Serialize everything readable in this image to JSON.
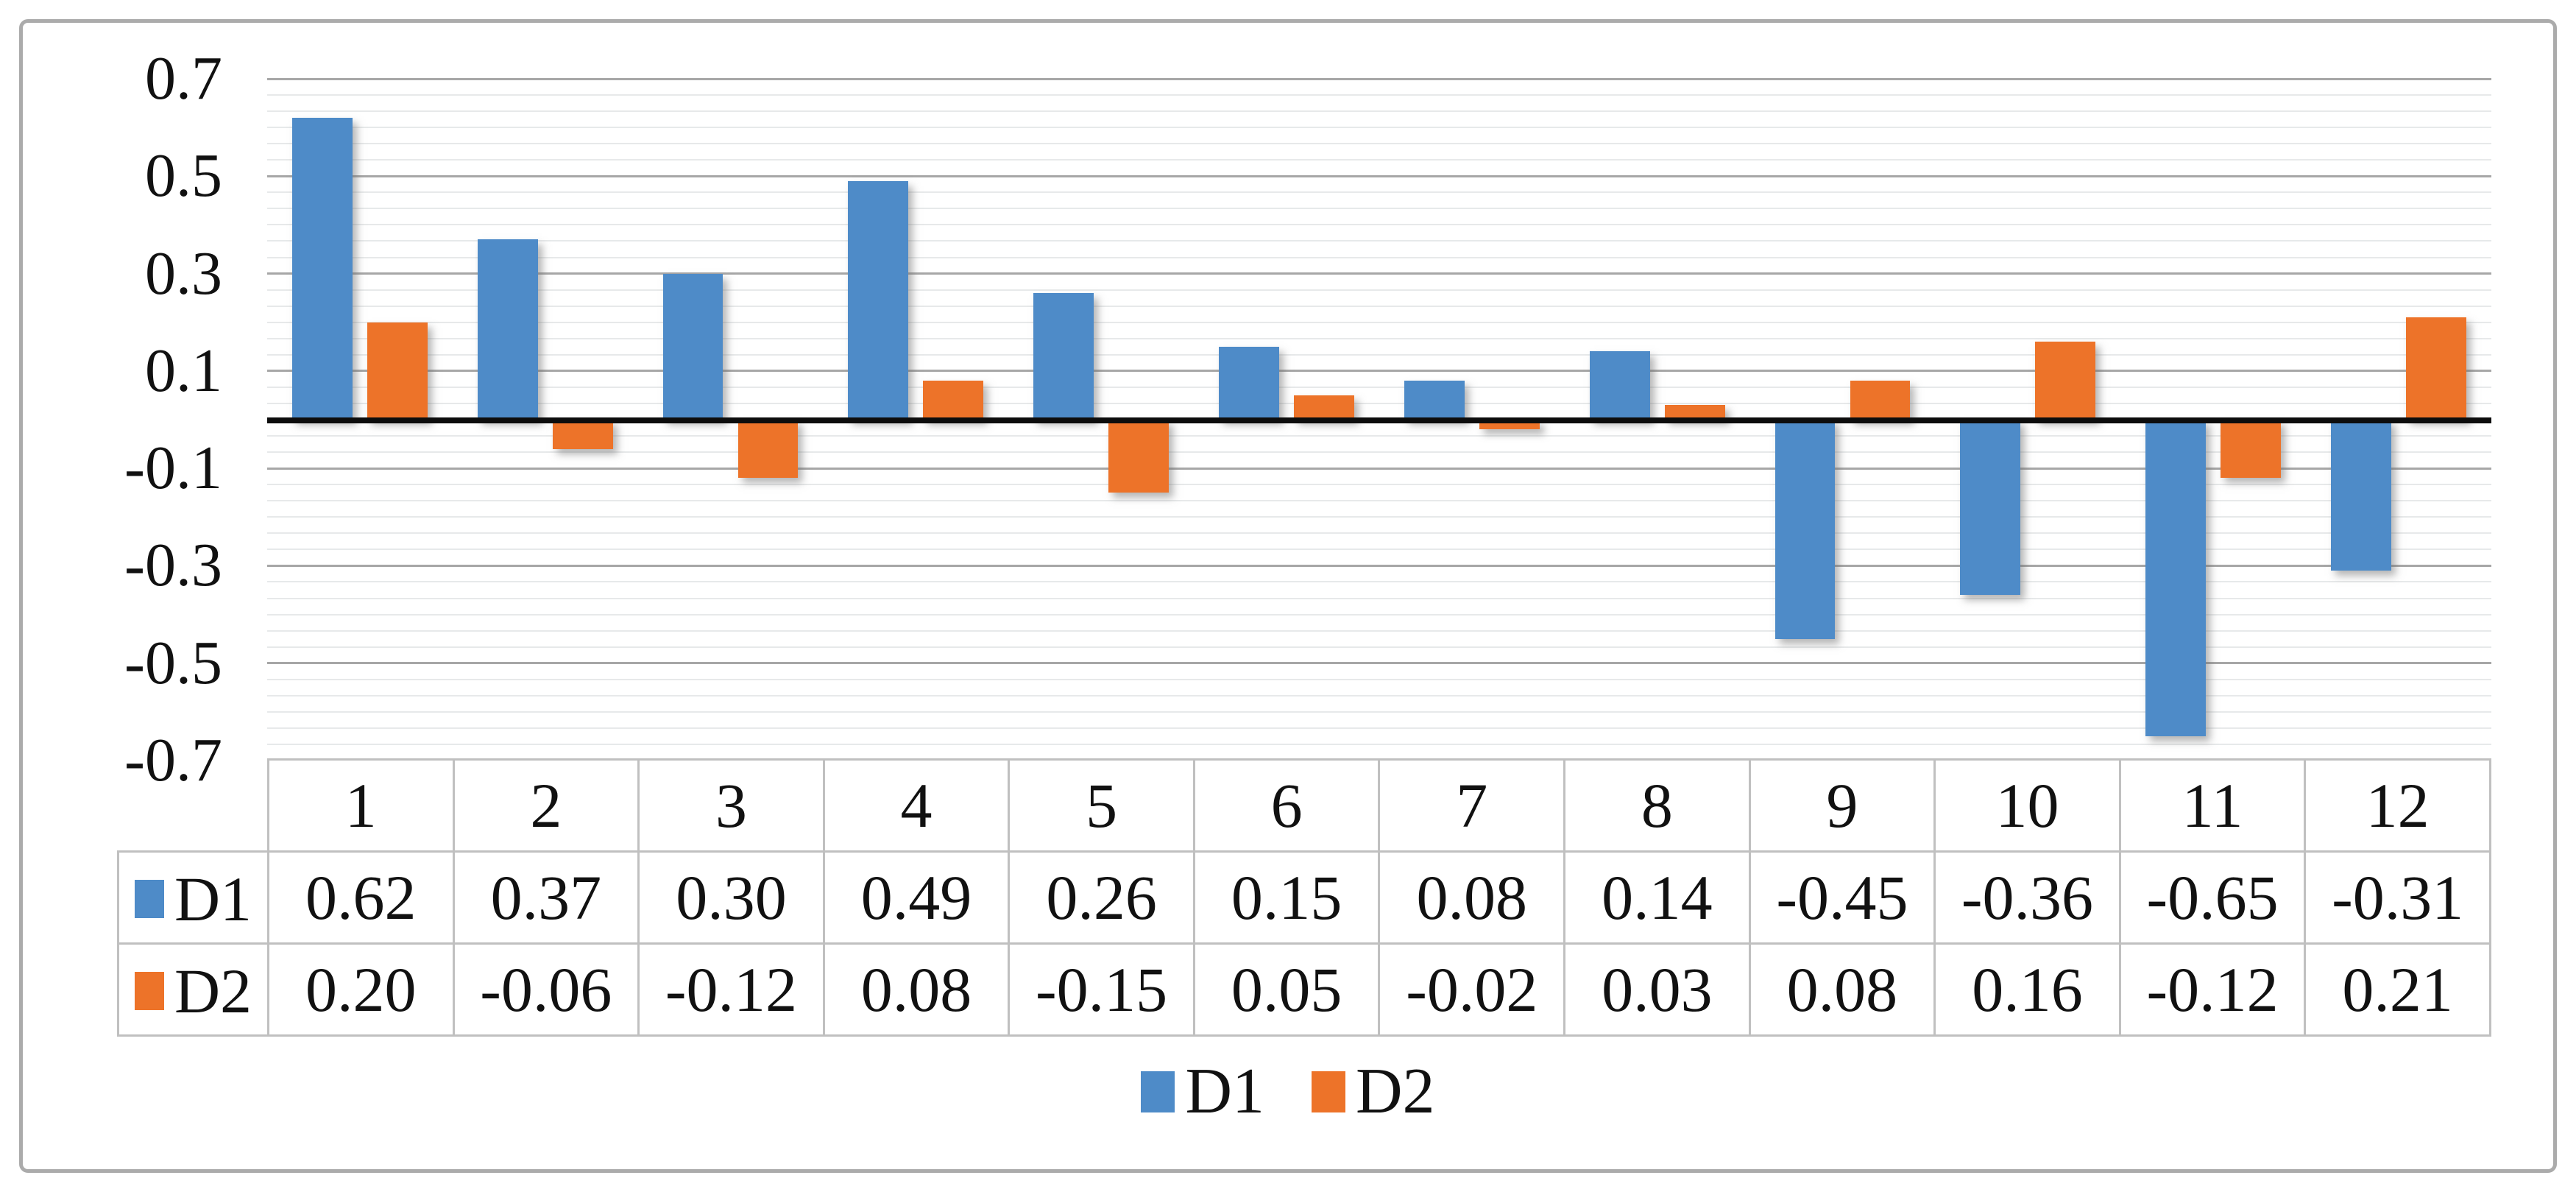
{
  "chart_data": {
    "type": "bar",
    "title": "",
    "xlabel": "",
    "ylabel": "",
    "categories": [
      "1",
      "2",
      "3",
      "4",
      "5",
      "6",
      "7",
      "8",
      "9",
      "10",
      "11",
      "12"
    ],
    "series": [
      {
        "name": "D1",
        "color": "#4E8BC8",
        "values": [
          0.62,
          0.37,
          0.3,
          0.49,
          0.26,
          0.15,
          0.08,
          0.14,
          -0.45,
          -0.36,
          -0.65,
          -0.31
        ]
      },
      {
        "name": "D2",
        "color": "#ED7329",
        "values": [
          0.2,
          -0.06,
          -0.12,
          0.08,
          -0.15,
          0.05,
          -0.02,
          0.03,
          0.08,
          0.16,
          -0.12,
          0.21
        ]
      }
    ],
    "ylim": [
      -0.7,
      0.7
    ],
    "y_major_step": 0.2,
    "y_tick_labels": [
      "0.7",
      "0.5",
      "0.3",
      "0.1",
      "-0.1",
      "-0.3",
      "-0.5",
      "-0.7"
    ],
    "grid": true,
    "minor_grid": true,
    "zero_axis_line": true,
    "legend_position": "bottom",
    "data_table_shown": true
  },
  "table": {
    "category_row": [
      "1",
      "2",
      "3",
      "4",
      "5",
      "6",
      "7",
      "8",
      "9",
      "10",
      "11",
      "12"
    ],
    "series_rows": [
      {
        "label": "D1",
        "values": [
          "0.62",
          "0.37",
          "0.30",
          "0.49",
          "0.26",
          "0.15",
          "0.08",
          "0.14",
          "-0.45",
          "-0.36",
          "-0.65",
          "-0.31"
        ]
      },
      {
        "label": "D2",
        "values": [
          "0.20",
          "-0.06",
          "-0.12",
          "0.08",
          "-0.15",
          "0.05",
          "-0.02",
          "0.03",
          "0.08",
          "0.16",
          "-0.12",
          "0.21"
        ]
      }
    ]
  },
  "legend": {
    "items": [
      {
        "label": "D1",
        "color": "#4E8BC8"
      },
      {
        "label": "D2",
        "color": "#ED7329"
      }
    ]
  },
  "colors": {
    "bar_d1": "#4E8BC8",
    "bar_d2": "#ED7329",
    "zero_line": "#0d0d0d",
    "major_grid": "#a7a7a7",
    "minor_grid": "#e7e9ea",
    "table_border": "#c0c0c0",
    "frame_border": "#ababab",
    "text": "#111111"
  }
}
